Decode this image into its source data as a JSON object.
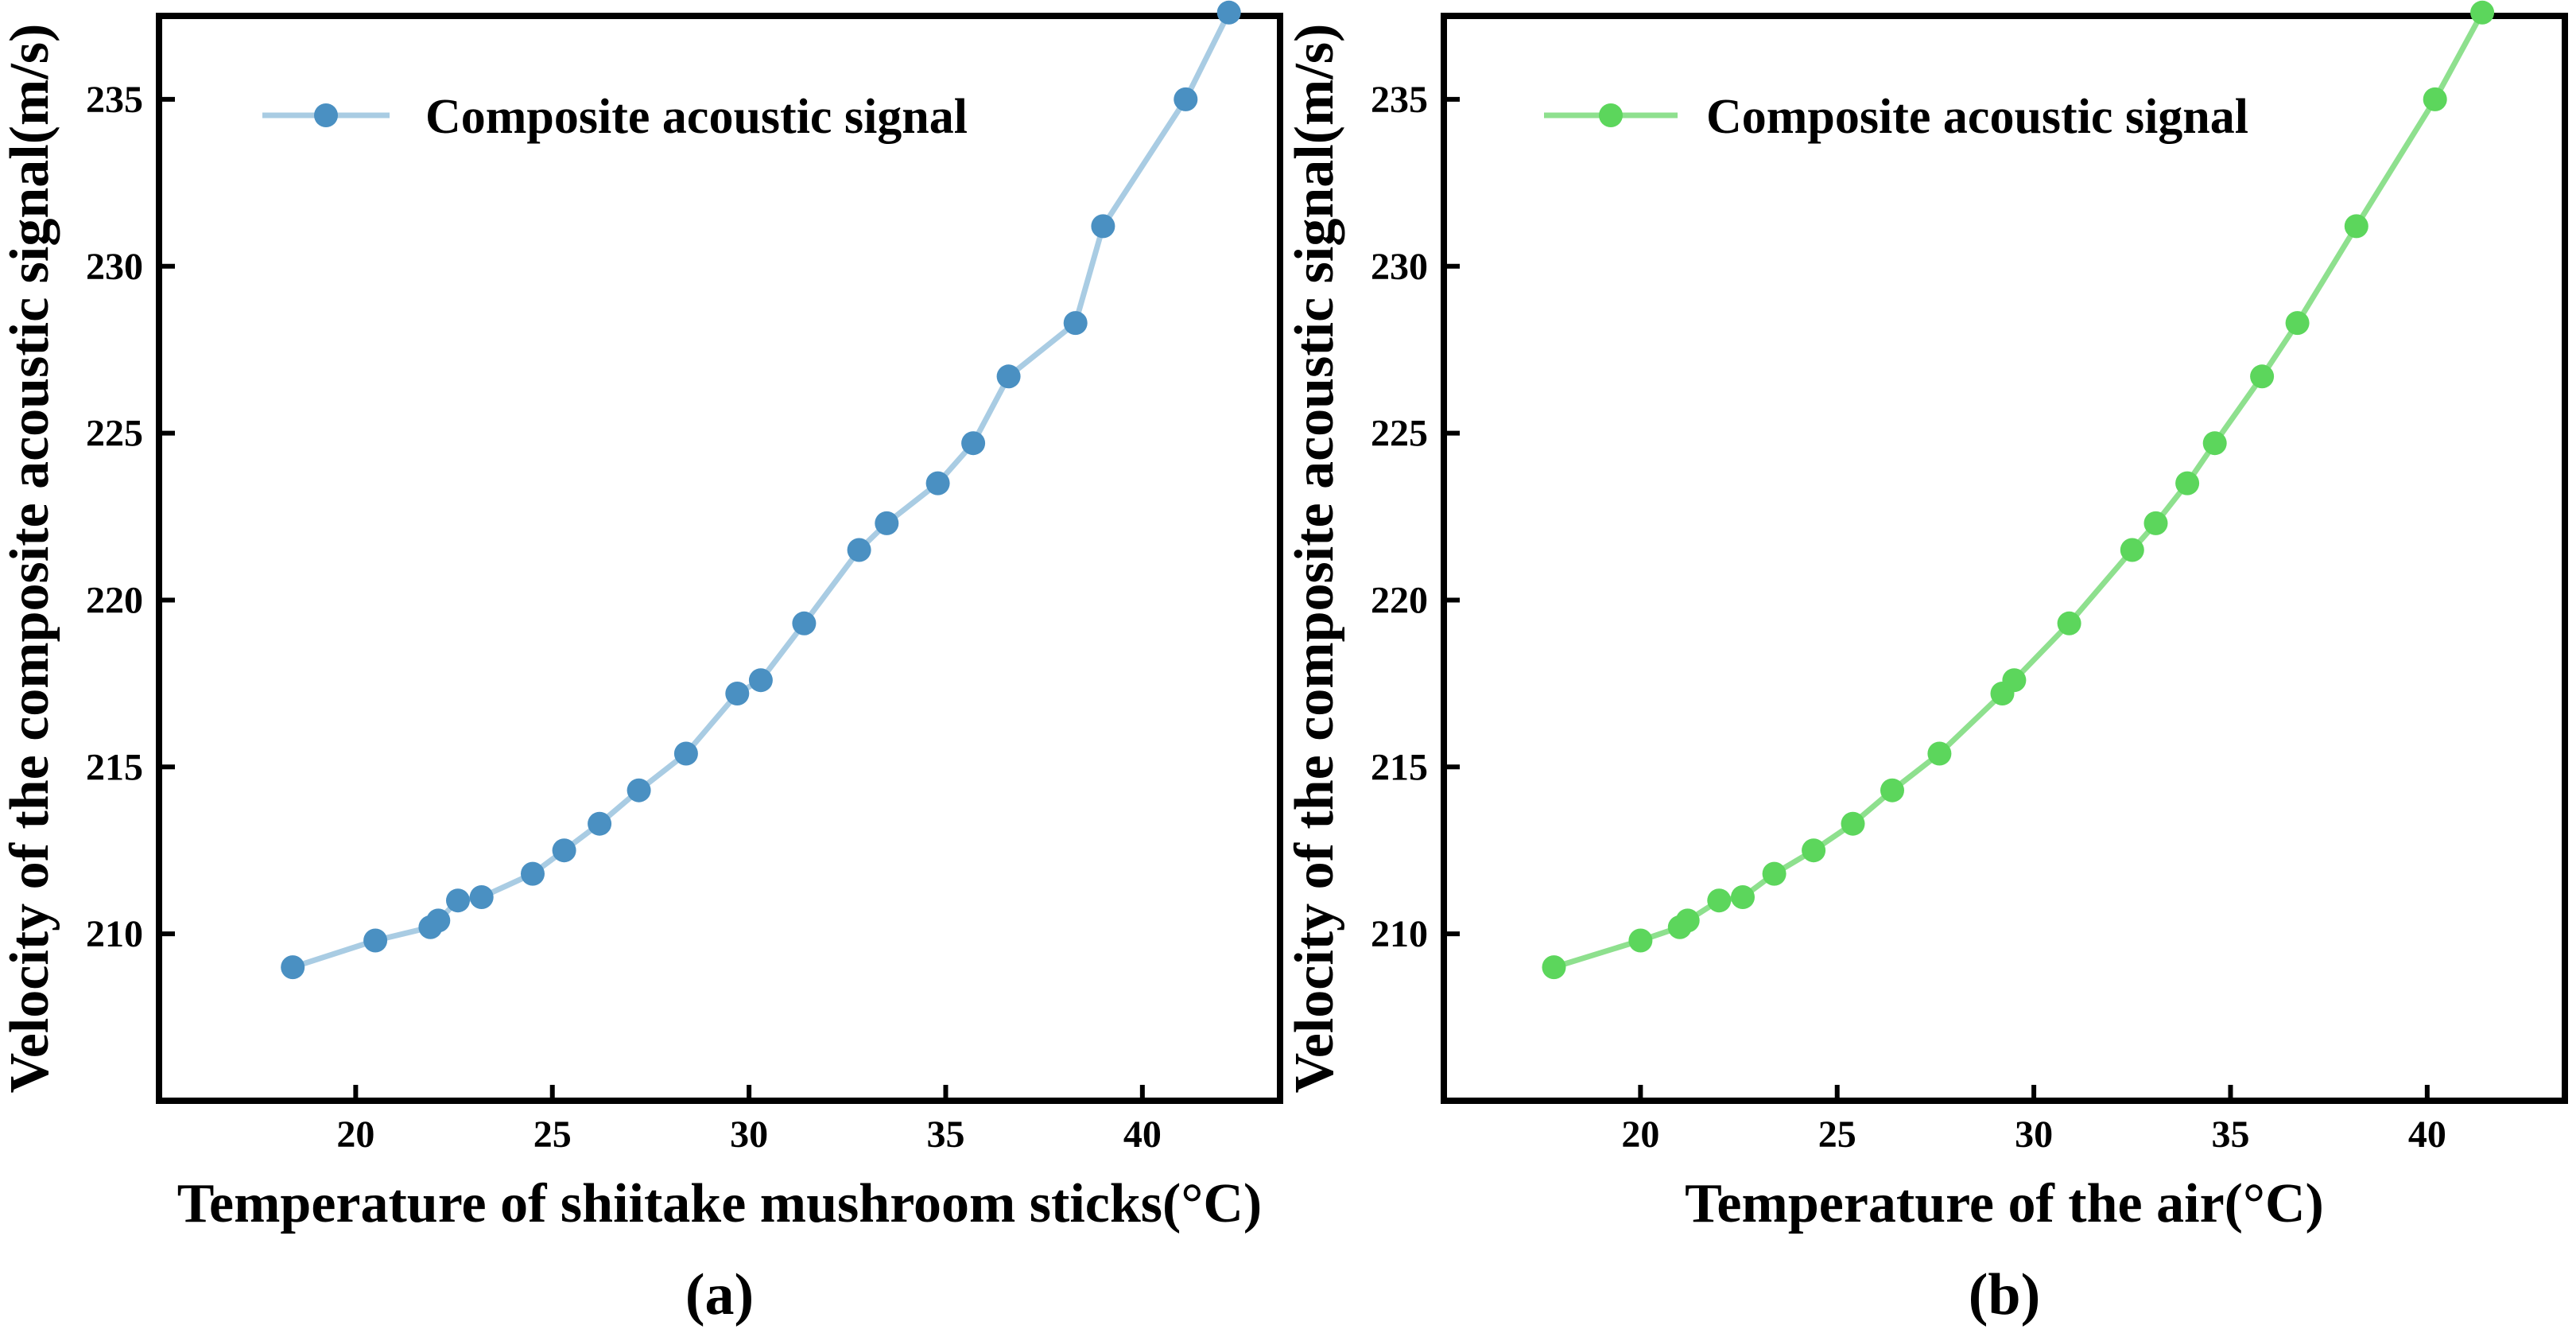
{
  "chart_data": [
    {
      "type": "line",
      "panel_label": "(a)",
      "xlabel": "Temperature of shiitake mushroom sticks(°C)",
      "ylabel": "Velocity of the composite acoustic signal(m/s)",
      "xlim": [
        15,
        43.5
      ],
      "ylim": [
        205,
        237.5
      ],
      "xticks": [
        20,
        25,
        30,
        35,
        40
      ],
      "yticks": [
        210,
        215,
        220,
        225,
        230,
        235
      ],
      "legend_position": "top-left",
      "series": [
        {
          "name": "Composite acoustic signal",
          "line_color": "#a9cce3",
          "marker_color": "#4a90c2",
          "x": [
            18.4,
            20.5,
            21.9,
            22.1,
            22.6,
            23.2,
            24.5,
            25.3,
            26.2,
            27.2,
            28.4,
            29.7,
            30.3,
            31.4,
            32.8,
            33.5,
            34.8,
            35.7,
            36.6,
            38.3,
            39.0,
            41.1,
            42.2
          ],
          "y": [
            209.0,
            209.8,
            210.2,
            210.4,
            211.0,
            211.1,
            211.8,
            212.5,
            213.3,
            214.3,
            215.4,
            217.2,
            217.6,
            219.3,
            221.5,
            222.3,
            223.5,
            224.7,
            226.7,
            228.3,
            231.2,
            235.0,
            237.6
          ]
        }
      ]
    },
    {
      "type": "line",
      "panel_label": "(b)",
      "xlabel": "Temperature of the air(°C)",
      "ylabel": "Velocity of the composite acoustic signal(m/s)",
      "xlim": [
        15,
        43.5
      ],
      "ylim": [
        205,
        237.5
      ],
      "xticks": [
        20,
        25,
        30,
        35,
        40
      ],
      "yticks": [
        210,
        215,
        220,
        225,
        230,
        235
      ],
      "legend_position": "top-left",
      "series": [
        {
          "name": "Composite acoustic signal",
          "line_color": "#8ee08e",
          "marker_color": "#5cd65c",
          "x": [
            17.8,
            20.0,
            21.0,
            21.2,
            22.0,
            22.6,
            23.4,
            24.4,
            25.4,
            26.4,
            27.6,
            29.2,
            29.5,
            30.9,
            32.5,
            33.1,
            33.9,
            34.6,
            35.8,
            36.7,
            38.2,
            40.2,
            41.4
          ],
          "y": [
            209.0,
            209.8,
            210.2,
            210.4,
            211.0,
            211.1,
            211.8,
            212.5,
            213.3,
            214.3,
            215.4,
            217.2,
            217.6,
            219.3,
            221.5,
            222.3,
            223.5,
            224.7,
            226.7,
            228.3,
            231.2,
            235.0,
            237.6
          ]
        }
      ]
    }
  ]
}
